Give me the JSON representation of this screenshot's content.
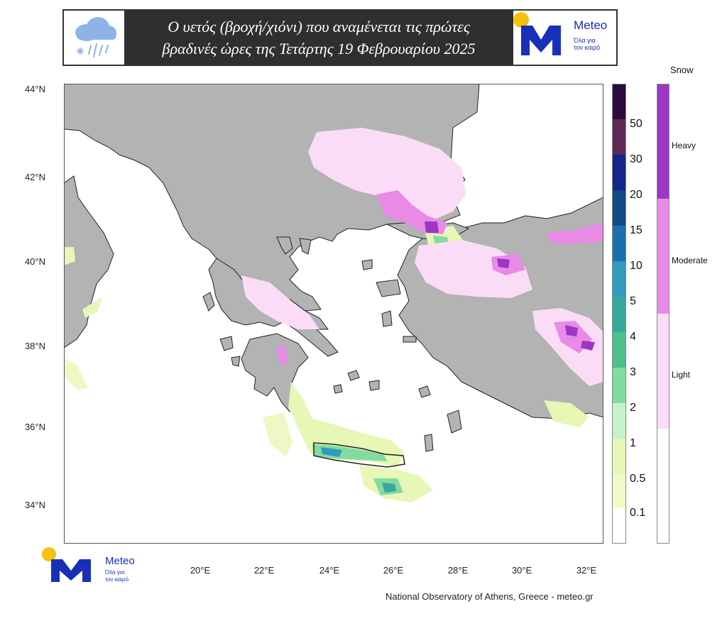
{
  "header": {
    "title_line1": "Ο υετός (βροχή/χιόνι) που αναμένεται τις πρώτες",
    "title_line2": "βραδινές ώρες της Τετάρτης 19 Φεβρουαρίου  2025",
    "weather_icon": "rain-snow-cloud-icon"
  },
  "brand": {
    "name": "Meteo",
    "tagline_line1": "Όλα για",
    "tagline_line2": "τον καιρό",
    "accent_yellow": "#f4c20d",
    "accent_blue": "#1a2fb8"
  },
  "map": {
    "lat_labels": [
      "44°N",
      "42°N",
      "40°N",
      "38°N",
      "36°N",
      "34°N"
    ],
    "lon_labels": [
      "20°E",
      "22°E",
      "24°E",
      "26°E",
      "28°E",
      "30°E",
      "32°E"
    ],
    "land_color": "#b3b3b3",
    "sea_color": "#ffffff"
  },
  "precip_legend": {
    "labels": [
      "50",
      "30",
      "20",
      "15",
      "10",
      "5",
      "4",
      "3",
      "2",
      "1",
      "0.5",
      "0.1"
    ],
    "colors": [
      "#2a0a3f",
      "#5e2a55",
      "#16258a",
      "#114a85",
      "#1a6fb0",
      "#2f9bbd",
      "#37a99b",
      "#4cbf8c",
      "#82dba1",
      "#c6f2c9",
      "#e7f7b6",
      "#f0f9c8",
      "#ffffff"
    ]
  },
  "snow_legend": {
    "title": "Snow",
    "labels": [
      "Heavy",
      "Moderate",
      "Light"
    ],
    "colors": [
      "#9c37c4",
      "#e98ae6",
      "#fbdcf7",
      "#ffffff"
    ]
  },
  "footer": {
    "credit": "National Observatory of Athens, Greece - meteo.gr"
  }
}
